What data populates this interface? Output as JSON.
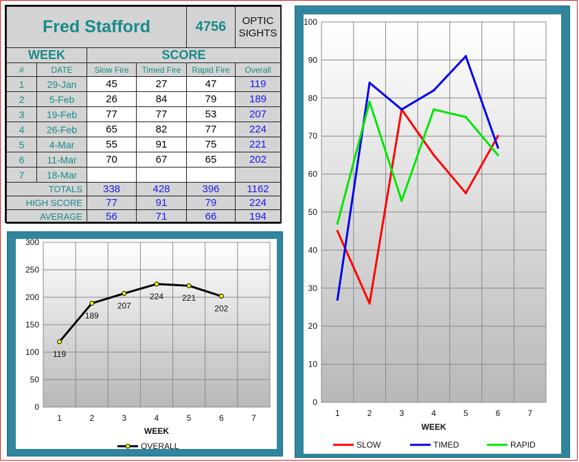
{
  "sheet": {
    "name": "Fred Stafford",
    "id_number": "4756",
    "sights_line1": "OPTIC",
    "sights_line2": "SIGHTS",
    "week_header": "WEEK",
    "score_header": "SCORE",
    "columns": [
      "#",
      "DATE",
      "Slow Fire",
      "Timed Fire",
      "Rapid Fire",
      "Overall"
    ],
    "rows": [
      {
        "num": "1",
        "date": "29-Jan",
        "slow": "45",
        "timed": "27",
        "rapid": "47",
        "overall": "119"
      },
      {
        "num": "2",
        "date": "5-Feb",
        "slow": "26",
        "timed": "84",
        "rapid": "79",
        "overall": "189"
      },
      {
        "num": "3",
        "date": "19-Feb",
        "slow": "77",
        "timed": "77",
        "rapid": "53",
        "overall": "207"
      },
      {
        "num": "4",
        "date": "26-Feb",
        "slow": "65",
        "timed": "82",
        "rapid": "77",
        "overall": "224"
      },
      {
        "num": "5",
        "date": "4-Mar",
        "slow": "55",
        "timed": "91",
        "rapid": "75",
        "overall": "221"
      },
      {
        "num": "6",
        "date": "11-Mar",
        "slow": "70",
        "timed": "67",
        "rapid": "65",
        "overall": "202"
      },
      {
        "num": "7",
        "date": "18-Mar",
        "slow": "",
        "timed": "",
        "rapid": "",
        "overall": ""
      }
    ],
    "totals": {
      "label": "TOTALS",
      "slow": "338",
      "timed": "428",
      "rapid": "396",
      "overall": "1162"
    },
    "high": {
      "label": "HIGH SCORE",
      "slow": "77",
      "timed": "91",
      "rapid": "79",
      "overall": "224"
    },
    "average": {
      "label": "AVERAGE",
      "slow": "56",
      "timed": "71",
      "rapid": "66",
      "overall": "194"
    }
  },
  "chart_data": [
    {
      "type": "line",
      "x": [
        1,
        2,
        3,
        4,
        5,
        6
      ],
      "categories": [
        "1",
        "2",
        "3",
        "4",
        "5",
        "6",
        "7"
      ],
      "series": [
        {
          "name": "OVERALL",
          "values": [
            119,
            189,
            207,
            224,
            221,
            202
          ],
          "color": "#000000"
        }
      ],
      "data_labels": [
        "119",
        "189",
        "207",
        "224",
        "221",
        "202"
      ],
      "yticks": [
        "0",
        "50",
        "100",
        "150",
        "200",
        "250",
        "300"
      ],
      "ylim": [
        0,
        300
      ],
      "xlim": [
        0.5,
        7.5
      ],
      "xlabel": "WEEK",
      "grid": true,
      "legend": "bottom"
    },
    {
      "type": "line",
      "x": [
        1,
        2,
        3,
        4,
        5,
        6
      ],
      "categories": [
        "1",
        "2",
        "3",
        "4",
        "5",
        "6",
        "7"
      ],
      "series": [
        {
          "name": "SLOW",
          "values": [
            45,
            26,
            77,
            65,
            55,
            70
          ],
          "color": "#ff0000"
        },
        {
          "name": "TIMED",
          "values": [
            27,
            84,
            77,
            82,
            91,
            67
          ],
          "color": "#0000ee"
        },
        {
          "name": "RAPID",
          "values": [
            47,
            79,
            53,
            77,
            75,
            65
          ],
          "color": "#00e600"
        }
      ],
      "yticks": [
        "0",
        "10",
        "20",
        "30",
        "40",
        "50",
        "60",
        "70",
        "80",
        "90",
        "100"
      ],
      "ylim": [
        0,
        100
      ],
      "xlim": [
        0.5,
        7.5
      ],
      "xlabel": "WEEK",
      "grid": true,
      "legend": "bottom"
    }
  ]
}
